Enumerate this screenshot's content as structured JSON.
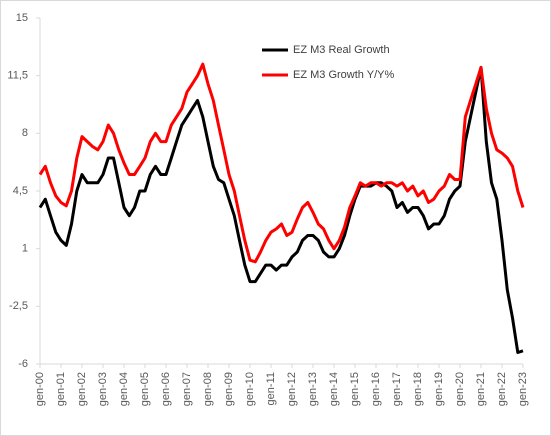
{
  "chart_data": {
    "type": "line",
    "categories": [
      "gen-00",
      null,
      null,
      null,
      "gen-01",
      null,
      null,
      null,
      "gen-02",
      null,
      null,
      null,
      "gen-03",
      null,
      null,
      null,
      "gen-04",
      null,
      null,
      null,
      "gen-05",
      null,
      null,
      null,
      "gen-06",
      null,
      null,
      null,
      "gen-07",
      null,
      null,
      null,
      "gen-08",
      null,
      null,
      null,
      "gen-09",
      null,
      null,
      null,
      "gen-10",
      null,
      null,
      null,
      "gen-11",
      null,
      null,
      null,
      "gen-12",
      null,
      null,
      null,
      "gen-13",
      null,
      null,
      null,
      "gen-14",
      null,
      null,
      null,
      "gen-15",
      null,
      null,
      null,
      "gen-16",
      null,
      null,
      null,
      "gen-17",
      null,
      null,
      null,
      "gen-18",
      null,
      null,
      null,
      "gen-19",
      null,
      null,
      null,
      "gen-20",
      null,
      null,
      null,
      "gen-21",
      null,
      null,
      null,
      "gen-22",
      null,
      null,
      null,
      "gen-23"
    ],
    "series": [
      {
        "name": "EZ M3 Real Growth",
        "color": "#000000",
        "values": [
          3.5,
          4,
          3,
          2,
          1.5,
          1.2,
          2.5,
          4.5,
          5.5,
          5,
          5,
          5,
          5.5,
          6.5,
          6.5,
          5,
          3.5,
          3,
          3.5,
          4.5,
          4.5,
          5.5,
          6,
          5.5,
          5.5,
          6.5,
          7.5,
          8.5,
          9,
          9.5,
          10,
          9,
          7.5,
          6,
          5.2,
          5,
          4,
          3,
          1.5,
          0,
          -1,
          -1,
          -0.5,
          0,
          0,
          -0.3,
          0,
          0,
          0.5,
          0.8,
          1.5,
          1.8,
          1.8,
          1.5,
          0.8,
          0.5,
          0.5,
          1,
          1.8,
          3,
          4,
          4.8,
          4.8,
          4.8,
          5,
          5,
          4.8,
          4.5,
          3.5,
          3.8,
          3.2,
          3.5,
          3.5,
          3,
          2.2,
          2.5,
          2.5,
          3,
          4,
          4.5,
          4.8,
          7.5,
          9,
          10.5,
          12,
          7.5,
          5,
          4,
          1.5,
          -1.5,
          -3.2,
          -5.3,
          -5.2
        ]
      },
      {
        "name": "EZ M3 Growth Y/Y%",
        "color": "#ff0000",
        "values": [
          5.5,
          6,
          5,
          4.2,
          3.8,
          3.6,
          4.5,
          6.5,
          7.8,
          7.5,
          7.2,
          7,
          7.5,
          8.5,
          8,
          7,
          6.2,
          5.5,
          5.5,
          6,
          6.5,
          7.5,
          8,
          7.5,
          7.5,
          8.5,
          9,
          9.5,
          10.5,
          11,
          11.5,
          12.2,
          11,
          10,
          8.5,
          7,
          5.5,
          4.5,
          3,
          1.5,
          0.3,
          0.2,
          0.8,
          1.5,
          2,
          2.2,
          2.5,
          1.8,
          2,
          2.8,
          3.5,
          3.8,
          3.2,
          2.5,
          2.2,
          1.5,
          1,
          1.5,
          2.3,
          3.5,
          4.2,
          5,
          4.8,
          5,
          5,
          4.8,
          5,
          5,
          4.8,
          5,
          4.5,
          4.8,
          4.2,
          4.5,
          3.8,
          4,
          4.5,
          4.8,
          5.5,
          5.2,
          5.2,
          9,
          10,
          11,
          12,
          9.5,
          8,
          7,
          6.8,
          6.5,
          6,
          4.5,
          3.5
        ]
      }
    ],
    "ylim": [
      -6,
      15
    ],
    "yticks": [
      -6,
      {
        "value": -2.5,
        "label": "-2,5"
      },
      1,
      {
        "value": 4.5,
        "label": "4,5"
      },
      8,
      {
        "value": 11.5,
        "label": "11,5"
      },
      15
    ],
    "grid": false
  }
}
